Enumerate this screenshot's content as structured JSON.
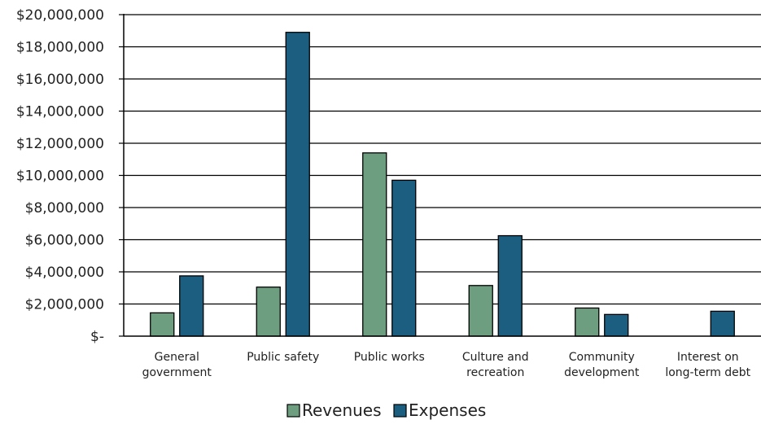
{
  "chart_data": {
    "type": "bar",
    "title": "",
    "xlabel": "",
    "ylabel": "",
    "categories": [
      [
        "General",
        "government"
      ],
      [
        "Public safety"
      ],
      [
        "Public works"
      ],
      [
        "Culture and",
        "recreation"
      ],
      [
        "Community",
        "development"
      ],
      [
        "Interest on",
        "long-term debt"
      ]
    ],
    "series": [
      {
        "name": "Revenues",
        "color": "#6e9e80",
        "values": [
          1450000,
          3050000,
          11400000,
          3150000,
          1750000,
          0
        ]
      },
      {
        "name": "Expenses",
        "color": "#1b5e80",
        "values": [
          3750000,
          18900000,
          9700000,
          6250000,
          1350000,
          1550000
        ]
      }
    ],
    "ylim": [
      0,
      20000000
    ],
    "yticks": [
      {
        "value": 0,
        "label": "$-"
      },
      {
        "value": 2000000,
        "label": "$2,000,000"
      },
      {
        "value": 4000000,
        "label": "$4,000,000"
      },
      {
        "value": 6000000,
        "label": "$6,000,000"
      },
      {
        "value": 8000000,
        "label": "$8,000,000"
      },
      {
        "value": 10000000,
        "label": "$10,000,000"
      },
      {
        "value": 12000000,
        "label": "$12,000,000"
      },
      {
        "value": 14000000,
        "label": "$14,000,000"
      },
      {
        "value": 16000000,
        "label": "$16,000,000"
      },
      {
        "value": 18000000,
        "label": "$18,000,000"
      },
      {
        "value": 20000000,
        "label": "$20,000,000"
      }
    ],
    "grid": true,
    "legend_position": "bottom-center"
  }
}
